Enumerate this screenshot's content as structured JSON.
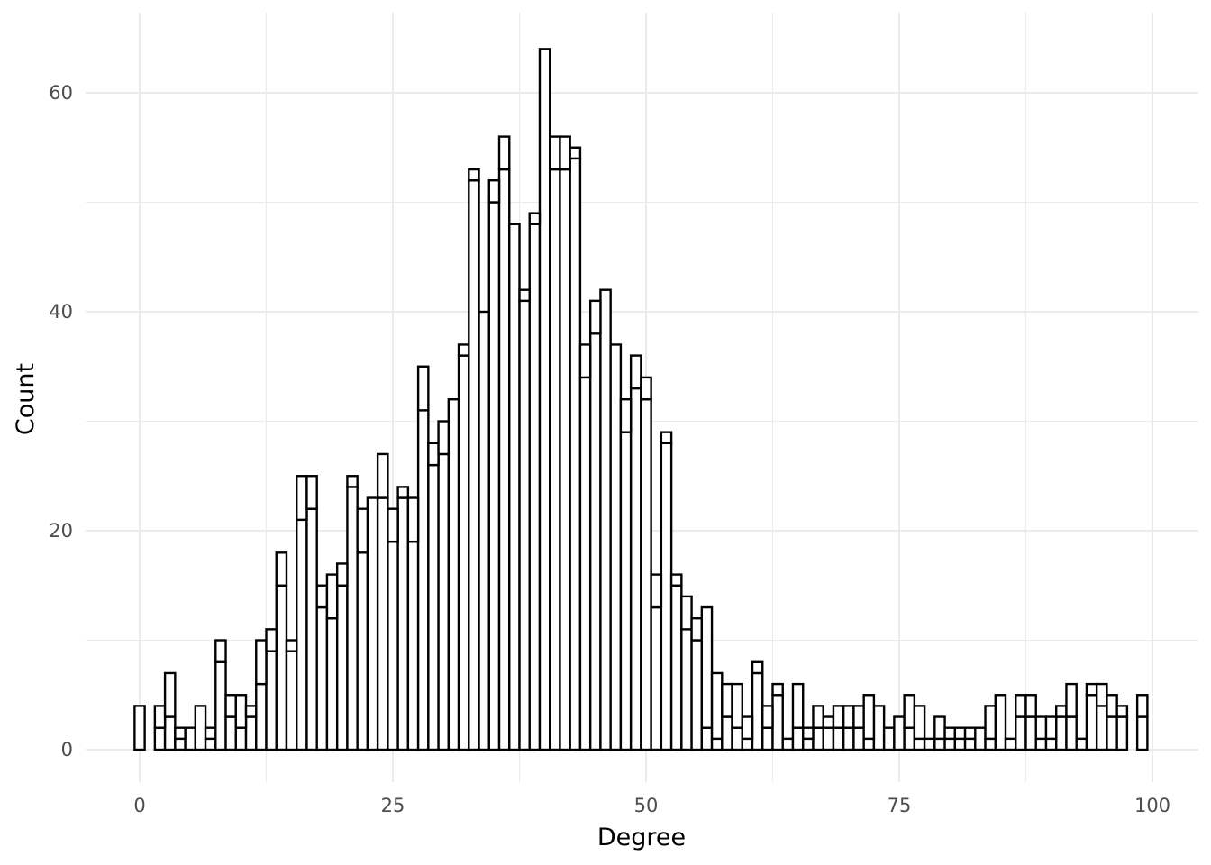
{
  "chart_data": {
    "type": "bar",
    "title": "",
    "xlabel": "Degree",
    "ylabel": "Count",
    "xlim": [
      -5,
      102
    ],
    "ylim": [
      -3,
      67
    ],
    "x_ticks": [
      0,
      25,
      50,
      75,
      100
    ],
    "y_ticks": [
      0,
      20,
      40,
      60
    ],
    "grid": true,
    "bin_width": 1,
    "series": [
      {
        "values": [
          [
            0,
            4
          ],
          [
            2,
            2
          ],
          [
            3,
            3
          ],
          [
            4,
            1
          ],
          [
            5,
            2
          ],
          [
            6,
            4
          ],
          [
            7,
            1
          ],
          [
            8,
            8
          ],
          [
            9,
            3
          ],
          [
            10,
            2
          ],
          [
            11,
            3
          ],
          [
            12,
            6
          ],
          [
            13,
            9
          ],
          [
            14,
            15
          ],
          [
            15,
            9
          ],
          [
            16,
            21
          ],
          [
            17,
            22
          ],
          [
            18,
            13
          ],
          [
            19,
            12
          ],
          [
            20,
            15
          ],
          [
            21,
            24
          ],
          [
            22,
            18
          ],
          [
            23,
            23
          ],
          [
            24,
            23
          ],
          [
            25,
            19
          ],
          [
            26,
            23
          ],
          [
            27,
            19
          ],
          [
            28,
            31
          ],
          [
            29,
            26
          ],
          [
            30,
            27
          ],
          [
            31,
            32
          ],
          [
            32,
            36
          ],
          [
            33,
            52
          ],
          [
            34,
            40
          ],
          [
            35,
            50
          ],
          [
            36,
            53
          ],
          [
            37,
            48
          ],
          [
            38,
            41
          ],
          [
            39,
            48
          ],
          [
            40,
            64
          ],
          [
            41,
            53
          ],
          [
            42,
            53
          ],
          [
            43,
            54
          ],
          [
            44,
            34
          ],
          [
            45,
            38
          ],
          [
            46,
            42
          ],
          [
            47,
            37
          ],
          [
            48,
            29
          ],
          [
            49,
            33
          ],
          [
            50,
            32
          ],
          [
            51,
            13
          ],
          [
            52,
            28
          ],
          [
            53,
            15
          ],
          [
            54,
            11
          ],
          [
            55,
            10
          ],
          [
            56,
            2
          ],
          [
            57,
            1
          ],
          [
            58,
            3
          ],
          [
            59,
            2
          ],
          [
            60,
            1
          ],
          [
            61,
            7
          ],
          [
            62,
            2
          ],
          [
            63,
            5
          ],
          [
            64,
            1
          ],
          [
            65,
            2
          ],
          [
            66,
            1
          ],
          [
            67,
            2
          ],
          [
            68,
            2
          ],
          [
            69,
            2
          ],
          [
            70,
            2
          ],
          [
            71,
            2
          ],
          [
            72,
            1
          ],
          [
            73,
            4
          ],
          [
            74,
            2
          ],
          [
            75,
            3
          ],
          [
            76,
            2
          ],
          [
            77,
            1
          ],
          [
            78,
            1
          ],
          [
            79,
            1
          ],
          [
            80,
            1
          ],
          [
            81,
            1
          ],
          [
            82,
            1
          ],
          [
            83,
            2
          ],
          [
            84,
            1
          ],
          [
            85,
            5
          ],
          [
            86,
            1
          ],
          [
            87,
            3
          ],
          [
            88,
            3
          ],
          [
            89,
            1
          ],
          [
            90,
            1
          ],
          [
            91,
            3
          ],
          [
            92,
            3
          ],
          [
            93,
            1
          ],
          [
            94,
            5
          ],
          [
            95,
            4
          ],
          [
            96,
            3
          ],
          [
            97,
            3
          ],
          [
            99,
            3
          ]
        ]
      },
      {
        "values": [
          [
            0,
            0
          ],
          [
            2,
            2
          ],
          [
            3,
            4
          ],
          [
            4,
            1
          ],
          [
            5,
            0
          ],
          [
            6,
            0
          ],
          [
            7,
            1
          ],
          [
            8,
            2
          ],
          [
            9,
            2
          ],
          [
            10,
            3
          ],
          [
            11,
            1
          ],
          [
            12,
            4
          ],
          [
            13,
            2
          ],
          [
            14,
            3
          ],
          [
            15,
            1
          ],
          [
            16,
            4
          ],
          [
            17,
            3
          ],
          [
            18,
            2
          ],
          [
            19,
            4
          ],
          [
            20,
            2
          ],
          [
            21,
            1
          ],
          [
            22,
            4
          ],
          [
            23,
            0
          ],
          [
            24,
            4
          ],
          [
            25,
            3
          ],
          [
            26,
            1
          ],
          [
            27,
            4
          ],
          [
            28,
            4
          ],
          [
            29,
            2
          ],
          [
            30,
            3
          ],
          [
            31,
            0
          ],
          [
            32,
            1
          ],
          [
            33,
            1
          ],
          [
            34,
            0
          ],
          [
            35,
            2
          ],
          [
            36,
            3
          ],
          [
            37,
            0
          ],
          [
            38,
            1
          ],
          [
            39,
            1
          ],
          [
            40,
            0
          ],
          [
            41,
            3
          ],
          [
            42,
            3
          ],
          [
            43,
            1
          ],
          [
            44,
            3
          ],
          [
            45,
            3
          ],
          [
            46,
            0
          ],
          [
            47,
            0
          ],
          [
            48,
            3
          ],
          [
            49,
            3
          ],
          [
            50,
            2
          ],
          [
            51,
            3
          ],
          [
            52,
            1
          ],
          [
            53,
            1
          ],
          [
            54,
            3
          ],
          [
            55,
            2
          ],
          [
            56,
            11
          ],
          [
            57,
            6
          ],
          [
            58,
            3
          ],
          [
            59,
            4
          ],
          [
            60,
            2
          ],
          [
            61,
            1
          ],
          [
            62,
            2
          ],
          [
            63,
            1
          ],
          [
            64,
            0
          ],
          [
            65,
            4
          ],
          [
            66,
            1
          ],
          [
            67,
            2
          ],
          [
            68,
            1
          ],
          [
            69,
            2
          ],
          [
            70,
            2
          ],
          [
            71,
            2
          ],
          [
            72,
            4
          ],
          [
            73,
            0
          ],
          [
            74,
            0
          ],
          [
            75,
            0
          ],
          [
            76,
            3
          ],
          [
            77,
            3
          ],
          [
            78,
            0
          ],
          [
            79,
            2
          ],
          [
            80,
            1
          ],
          [
            81,
            1
          ],
          [
            82,
            1
          ],
          [
            83,
            0
          ],
          [
            84,
            3
          ],
          [
            85,
            0
          ],
          [
            86,
            0
          ],
          [
            87,
            2
          ],
          [
            88,
            2
          ],
          [
            89,
            2
          ],
          [
            90,
            2
          ],
          [
            91,
            1
          ],
          [
            92,
            3
          ],
          [
            93,
            0
          ],
          [
            94,
            1
          ],
          [
            95,
            2
          ],
          [
            96,
            2
          ],
          [
            97,
            1
          ],
          [
            99,
            2
          ]
        ]
      }
    ]
  }
}
